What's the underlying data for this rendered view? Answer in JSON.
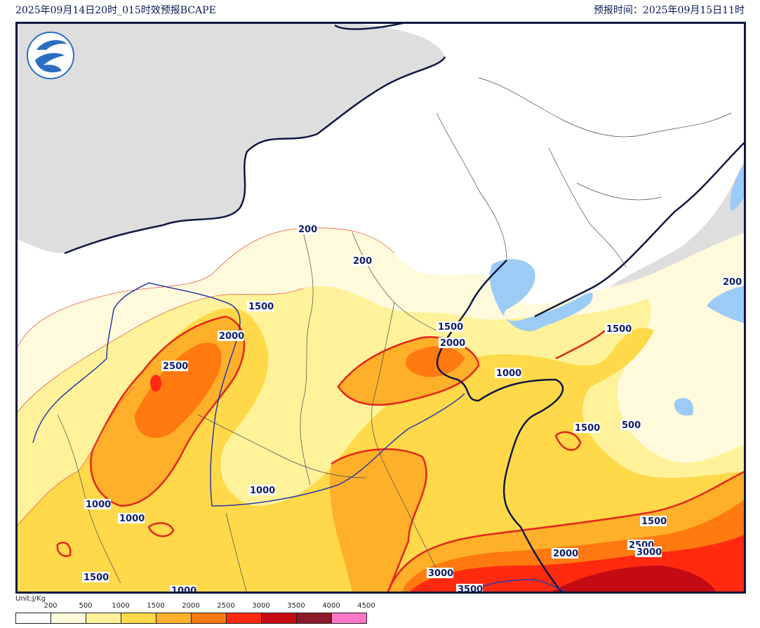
{
  "header": {
    "left": "2025年09月14日20时_015时效预报BCAPE",
    "right": "预报时间：2025年09月15日11时"
  },
  "contour_labels": [
    {
      "text": "200"
    },
    {
      "text": "200"
    },
    {
      "text": "200"
    },
    {
      "text": "1500"
    },
    {
      "text": "2000"
    },
    {
      "text": "2500"
    },
    {
      "text": "1500"
    },
    {
      "text": "2000"
    },
    {
      "text": "1000"
    },
    {
      "text": "1500"
    },
    {
      "text": "1500"
    },
    {
      "text": "500"
    },
    {
      "text": "1000"
    },
    {
      "text": "1000"
    },
    {
      "text": "1000"
    },
    {
      "text": "1500"
    },
    {
      "text": "1500"
    },
    {
      "text": "2000"
    },
    {
      "text": "2500"
    },
    {
      "text": "3000"
    },
    {
      "text": "3000"
    },
    {
      "text": "3500"
    },
    {
      "text": "1000"
    }
  ],
  "legend": {
    "unit": "Unit:J/Kg",
    "ticks": [
      "200",
      "500",
      "1000",
      "1500",
      "2000",
      "2500",
      "3000",
      "3500",
      "4000",
      "4500"
    ],
    "colors": [
      "#ffffff",
      "#fffadc",
      "#fff29a",
      "#ffd94a",
      "#ffb02a",
      "#ff7a10",
      "#ff2a10",
      "#c40a12",
      "#8c1a2a",
      "#ff77c8"
    ]
  },
  "map_colors": {
    "masked_land": "#dedede",
    "water": "#9ccbf5",
    "border": "#101840"
  },
  "icons": {
    "logo": "cma-logo-icon"
  }
}
